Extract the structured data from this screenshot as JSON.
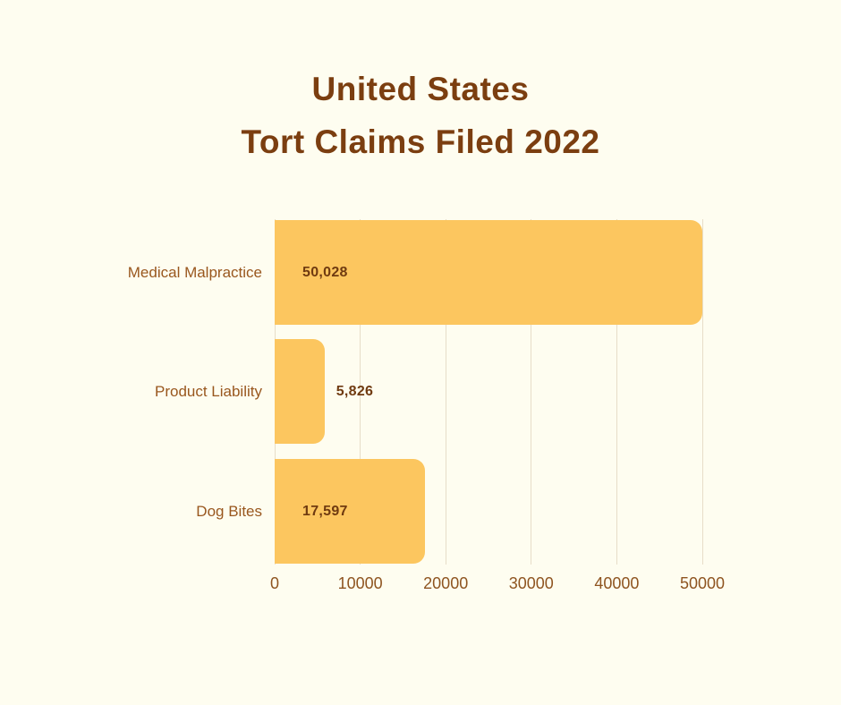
{
  "title": {
    "line1": "United States",
    "line2": "Tort Claims Filed 2022"
  },
  "chart_data": {
    "type": "bar",
    "orientation": "horizontal",
    "title": "United States Tort Claims Filed 2022",
    "categories": [
      "Medical Malpractice",
      "Product Liability",
      "Dog Bites"
    ],
    "values": [
      50028,
      5826,
      17597
    ],
    "value_labels": [
      "50,028",
      "5,826",
      "17,597"
    ],
    "xlim": [
      0,
      50000
    ],
    "xticks": [
      0,
      10000,
      20000,
      30000,
      40000,
      50000
    ],
    "xtick_labels": [
      "0",
      "10000",
      "20000",
      "30000",
      "40000",
      "50000"
    ],
    "grid": true,
    "legend": "none",
    "xlabel": "",
    "ylabel": ""
  },
  "colors": {
    "background": "#FEFDF0",
    "bar": "#FCC65F",
    "title_text": "#7B3E10",
    "category_text": "#99571E",
    "value_text": "#6F3A10",
    "tick_text": "#8E5420",
    "gridline": "#E7DDC8"
  }
}
